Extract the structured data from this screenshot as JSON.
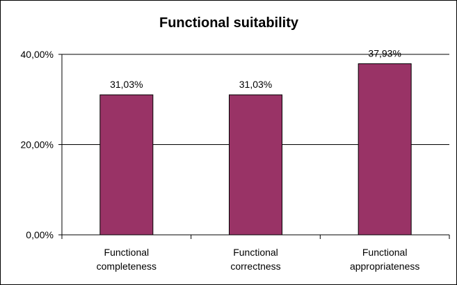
{
  "chart_data": {
    "type": "bar",
    "title": "Functional suitability",
    "categories": [
      [
        "Functional",
        "completeness"
      ],
      [
        "Functional",
        "correctness"
      ],
      [
        "Functional",
        "appropriateness"
      ]
    ],
    "values": [
      31.03,
      31.03,
      37.93
    ],
    "data_labels": [
      "31,03%",
      "31,03%",
      "37,93%"
    ],
    "yticks": [
      0,
      20,
      40
    ],
    "ytick_labels": [
      "0,00%",
      "20,00%",
      "40,00%"
    ],
    "ylim": [
      0,
      40
    ],
    "grid": true,
    "legend": "none",
    "colors": {
      "bar": "#993366",
      "bar_border": "#000000",
      "grid": "#000000",
      "axis": "#000000"
    }
  }
}
